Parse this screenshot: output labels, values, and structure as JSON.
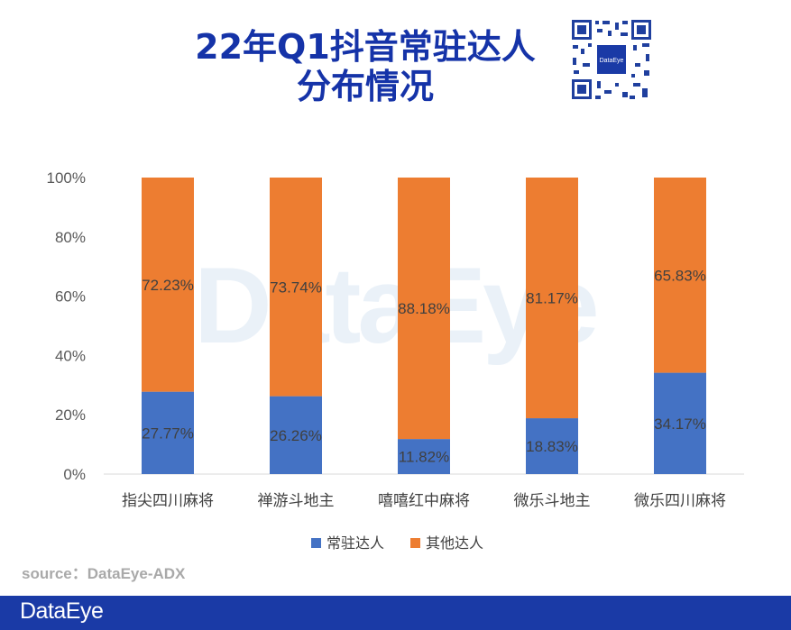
{
  "title_line1": "22年Q1抖音常驻达人",
  "title_line2": "分布情况",
  "watermark": "DataEye",
  "source": "source：DataEye-ADX",
  "footer_logo": "DataEye",
  "qr_logo_text": "DataEye",
  "colors": {
    "series1": "#4472c4",
    "series2": "#ed7d31",
    "title": "#1533a8",
    "footer": "#1a3aa6"
  },
  "chart_data": {
    "type": "bar",
    "stacked": true,
    "percent": true,
    "categories": [
      "指尖四川麻将",
      "禅游斗地主",
      "嘻嘻红中麻将",
      "微乐斗地主",
      "微乐四川麻将"
    ],
    "series": [
      {
        "name": "常驻达人",
        "values": [
          27.77,
          26.26,
          11.82,
          18.83,
          34.17
        ],
        "labels": [
          "27.77%",
          "26.26%",
          "11.82%",
          "18.83%",
          "34.17%"
        ]
      },
      {
        "name": "其他达人",
        "values": [
          72.23,
          73.74,
          88.18,
          81.17,
          65.83
        ],
        "labels": [
          "72.23%",
          "73.74%",
          "88.18%",
          "81.17%",
          "65.83%"
        ]
      }
    ],
    "yticks": [
      "0%",
      "20%",
      "40%",
      "60%",
      "80%",
      "100%"
    ],
    "ylim": [
      0,
      100
    ],
    "legend": "bottom"
  }
}
